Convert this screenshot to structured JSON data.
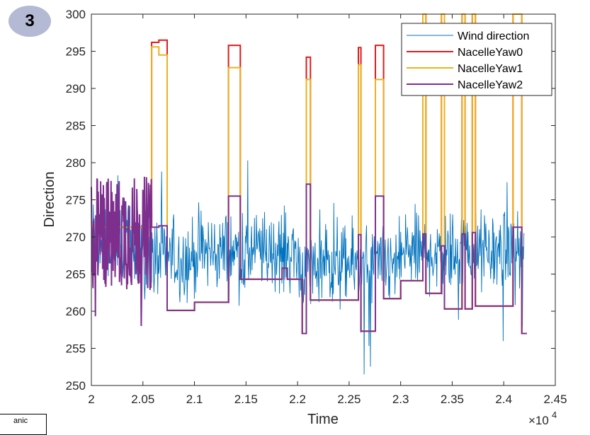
{
  "badge": {
    "text": "3"
  },
  "clipped_box": {
    "text": "anic"
  },
  "chart_data": {
    "type": "line",
    "title": "",
    "xlabel": "Time",
    "ylabel": "Direction",
    "x_exponent_label": "×10",
    "x_exponent_power": "4",
    "xlim": [
      2,
      2.45
    ],
    "ylim": [
      250,
      300
    ],
    "x_ticks": [
      2,
      2.05,
      2.1,
      2.15,
      2.2,
      2.25,
      2.3,
      2.35,
      2.4,
      2.45
    ],
    "x_tick_labels": [
      "2",
      "2.05",
      "2.1",
      "2.15",
      "2.2",
      "2.25",
      "2.3",
      "2.35",
      "2.4",
      "2.45"
    ],
    "y_ticks": [
      250,
      255,
      260,
      265,
      270,
      275,
      280,
      285,
      290,
      295,
      300
    ],
    "y_tick_labels": [
      "250",
      "255",
      "260",
      "265",
      "270",
      "275",
      "280",
      "285",
      "290",
      "295",
      "300"
    ],
    "grid": false,
    "legend_position": "top-right",
    "series": [
      {
        "name": "Wind direction",
        "color": "#0072BD",
        "kind": "noisy",
        "x_range": [
          2,
          2.42
        ],
        "mean_segments": [
          {
            "x": [
              2.0,
              2.05
            ],
            "mean": 269
          },
          {
            "x": [
              2.05,
              2.1
            ],
            "mean": 267
          },
          {
            "x": [
              2.1,
              2.2
            ],
            "mean": 268
          },
          {
            "x": [
              2.2,
              2.3
            ],
            "mean": 266
          },
          {
            "x": [
              2.3,
              2.42
            ],
            "mean": 268
          }
        ],
        "amplitude": 5,
        "y_min": 251.5,
        "y_max": 284
      },
      {
        "name": "NacelleYaw0",
        "color": "#D95319",
        "points": [
          [
            2.0,
            271.3
          ],
          [
            2.0585,
            271.3
          ],
          [
            2.0585,
            296.2
          ],
          [
            2.0655,
            296.2
          ],
          [
            2.0655,
            296.5
          ],
          [
            2.0735,
            296.5
          ],
          [
            2.0735,
            260.1
          ],
          [
            2.1,
            260.1
          ],
          [
            2.1,
            261.2
          ],
          [
            2.133,
            261.2
          ],
          [
            2.133,
            295.8
          ],
          [
            2.1445,
            295.8
          ],
          [
            2.1445,
            264.3
          ],
          [
            2.185,
            264.3
          ],
          [
            2.185,
            265.8
          ],
          [
            2.19,
            265.8
          ],
          [
            2.19,
            264.3
          ],
          [
            2.2045,
            264.3
          ],
          [
            2.2045,
            257.0
          ],
          [
            2.2085,
            257.0
          ],
          [
            2.2085,
            294.2
          ],
          [
            2.2125,
            294.2
          ],
          [
            2.2125,
            261.5
          ],
          [
            2.259,
            261.5
          ],
          [
            2.259,
            295.5
          ],
          [
            2.2615,
            295.5
          ],
          [
            2.2615,
            257.3
          ],
          [
            2.2755,
            257.3
          ],
          [
            2.2755,
            295.8
          ],
          [
            2.2835,
            295.8
          ],
          [
            2.2835,
            261.7
          ],
          [
            2.3,
            261.7
          ],
          [
            2.3,
            264.1
          ],
          [
            2.3215,
            264.1
          ],
          [
            2.3215,
            300
          ],
          [
            2.3245,
            300
          ],
          [
            2.3245,
            262.4
          ],
          [
            2.3395,
            262.4
          ],
          [
            2.3395,
            300
          ],
          [
            2.3425,
            300
          ],
          [
            2.3425,
            260.3
          ],
          [
            2.3595,
            260.3
          ],
          [
            2.3595,
            300
          ],
          [
            2.3625,
            300
          ],
          [
            2.3625,
            260.3
          ],
          [
            2.3695,
            260.3
          ],
          [
            2.3695,
            300
          ],
          [
            2.3725,
            300
          ],
          [
            2.3725,
            260.7
          ],
          [
            2.409,
            260.7
          ],
          [
            2.409,
            300
          ],
          [
            2.4175,
            300
          ],
          [
            2.4175,
            257.0
          ],
          [
            2.4225,
            257.0
          ]
        ]
      },
      {
        "name": "NacelleYaw1",
        "color": "#EDB120",
        "points": [
          [
            2.0,
            271.3
          ],
          [
            2.0585,
            271.3
          ],
          [
            2.0585,
            295.6
          ],
          [
            2.0655,
            295.6
          ],
          [
            2.0655,
            294.5
          ],
          [
            2.0735,
            294.5
          ],
          [
            2.0735,
            260.1
          ],
          [
            2.1,
            260.1
          ],
          [
            2.1,
            261.2
          ],
          [
            2.133,
            261.2
          ],
          [
            2.133,
            292.8
          ],
          [
            2.1445,
            292.8
          ],
          [
            2.1445,
            264.3
          ],
          [
            2.185,
            264.3
          ],
          [
            2.185,
            265.8
          ],
          [
            2.19,
            265.8
          ],
          [
            2.19,
            264.3
          ],
          [
            2.2045,
            264.3
          ],
          [
            2.2045,
            257.0
          ],
          [
            2.2085,
            257.0
          ],
          [
            2.2085,
            291.2
          ],
          [
            2.2125,
            291.2
          ],
          [
            2.2125,
            261.5
          ],
          [
            2.259,
            261.5
          ],
          [
            2.259,
            293.2
          ],
          [
            2.2615,
            293.2
          ],
          [
            2.2615,
            257.3
          ],
          [
            2.2755,
            257.3
          ],
          [
            2.2755,
            291.2
          ],
          [
            2.2835,
            291.2
          ],
          [
            2.2835,
            261.7
          ],
          [
            2.3,
            261.7
          ],
          [
            2.3,
            264.1
          ],
          [
            2.3215,
            264.1
          ],
          [
            2.3215,
            300
          ],
          [
            2.3245,
            300
          ],
          [
            2.3245,
            262.4
          ],
          [
            2.3395,
            262.4
          ],
          [
            2.3395,
            300
          ],
          [
            2.3425,
            300
          ],
          [
            2.3425,
            260.3
          ],
          [
            2.3595,
            260.3
          ],
          [
            2.3595,
            300
          ],
          [
            2.3625,
            300
          ],
          [
            2.3625,
            260.3
          ],
          [
            2.3695,
            260.3
          ],
          [
            2.3695,
            300
          ],
          [
            2.3725,
            300
          ],
          [
            2.3725,
            260.7
          ],
          [
            2.409,
            260.7
          ],
          [
            2.409,
            300
          ],
          [
            2.4175,
            300
          ],
          [
            2.4175,
            257.0
          ],
          [
            2.4225,
            257.0
          ]
        ]
      },
      {
        "name": "NacelleYaw2",
        "color": "#7E2F8E",
        "noisy_start": {
          "x": [
            2.0,
            2.0585
          ],
          "mean": 270.5,
          "amplitude": 6
        },
        "points": [
          [
            2.0585,
            271.3
          ],
          [
            2.0655,
            271.3
          ],
          [
            2.0655,
            271.5
          ],
          [
            2.0735,
            271.5
          ],
          [
            2.0735,
            260.1
          ],
          [
            2.1,
            260.1
          ],
          [
            2.1,
            261.2
          ],
          [
            2.133,
            261.2
          ],
          [
            2.133,
            275.5
          ],
          [
            2.1445,
            275.5
          ],
          [
            2.1445,
            264.3
          ],
          [
            2.185,
            264.3
          ],
          [
            2.185,
            265.8
          ],
          [
            2.19,
            265.8
          ],
          [
            2.19,
            264.3
          ],
          [
            2.2045,
            264.3
          ],
          [
            2.2045,
            257.0
          ],
          [
            2.2085,
            257.0
          ],
          [
            2.2085,
            277.1
          ],
          [
            2.2125,
            277.1
          ],
          [
            2.2125,
            261.5
          ],
          [
            2.259,
            261.5
          ],
          [
            2.259,
            270.3
          ],
          [
            2.2615,
            270.3
          ],
          [
            2.2615,
            257.3
          ],
          [
            2.2755,
            257.3
          ],
          [
            2.2755,
            275.5
          ],
          [
            2.2835,
            275.5
          ],
          [
            2.2835,
            261.7
          ],
          [
            2.3,
            261.7
          ],
          [
            2.3,
            264.1
          ],
          [
            2.3215,
            264.1
          ],
          [
            2.3215,
            270.4
          ],
          [
            2.3245,
            270.4
          ],
          [
            2.3245,
            262.4
          ],
          [
            2.3395,
            262.4
          ],
          [
            2.3395,
            268.8
          ],
          [
            2.3425,
            268.8
          ],
          [
            2.3425,
            260.3
          ],
          [
            2.3595,
            260.3
          ],
          [
            2.3595,
            270.4
          ],
          [
            2.3625,
            270.4
          ],
          [
            2.3625,
            260.3
          ],
          [
            2.3695,
            260.3
          ],
          [
            2.3695,
            270.6
          ],
          [
            2.3725,
            270.6
          ],
          [
            2.3725,
            260.7
          ],
          [
            2.409,
            260.7
          ],
          [
            2.409,
            271.3
          ],
          [
            2.4175,
            271.3
          ],
          [
            2.4175,
            257.0
          ],
          [
            2.4225,
            257.0
          ]
        ]
      }
    ]
  }
}
